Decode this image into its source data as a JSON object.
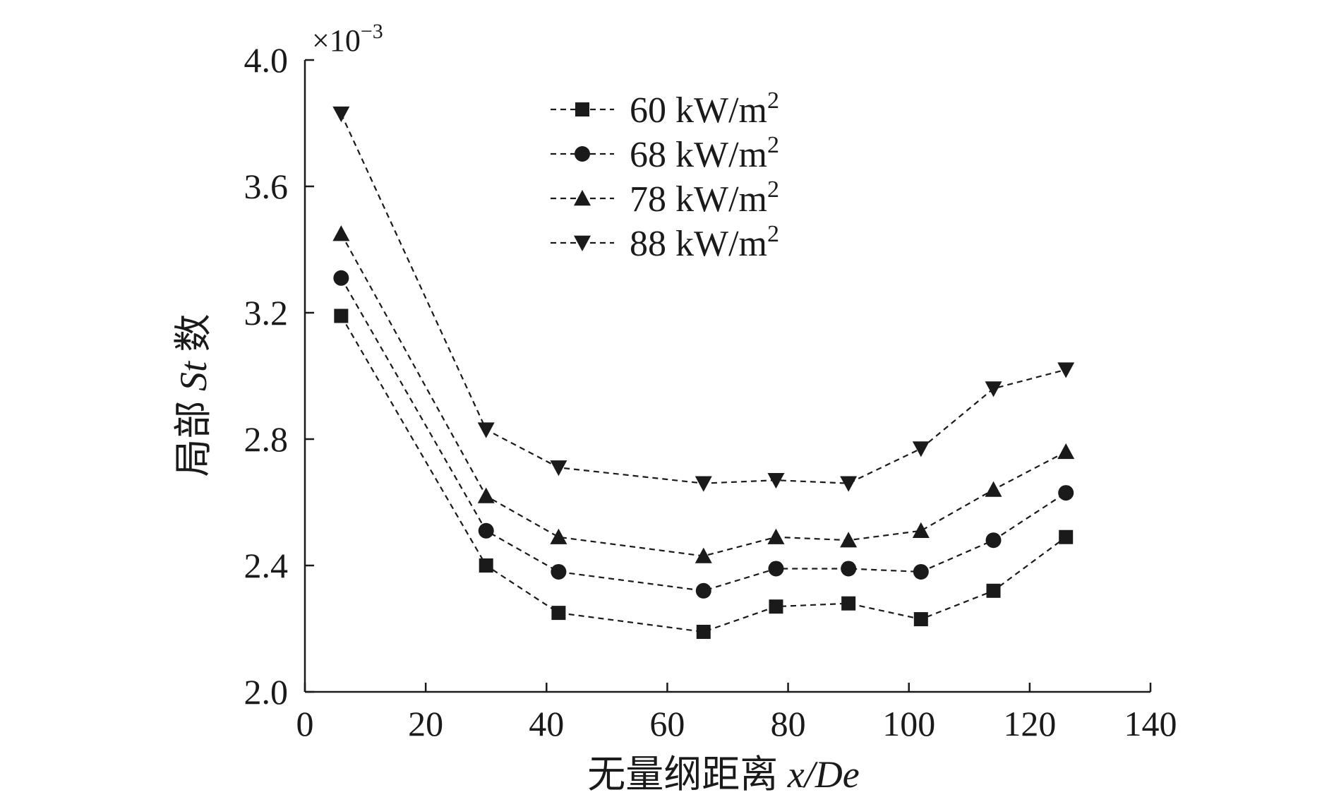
{
  "chart_data": {
    "type": "line",
    "title": "",
    "xlabel_text": "无量纲距离 ",
    "xlabel_var": "x/De",
    "ylabel_text_before": "局部 ",
    "ylabel_var": "St",
    "ylabel_text_after": " 数",
    "y_multiplier_base": "×10",
    "y_multiplier_exp": "−3",
    "xlim": [
      0,
      140
    ],
    "ylim": [
      2.0,
      4.0
    ],
    "x_ticks": [
      0,
      20,
      40,
      60,
      80,
      100,
      120,
      140
    ],
    "x_tick_labels": [
      "0",
      "20",
      "40",
      "60",
      "80",
      "100",
      "120",
      "140"
    ],
    "y_ticks": [
      2.0,
      2.4,
      2.8,
      3.2,
      3.6,
      4.0
    ],
    "y_tick_labels": [
      "2.0",
      "2.4",
      "2.8",
      "3.2",
      "3.6",
      "4.0"
    ],
    "grid": false,
    "legend_position": "top-center",
    "x": [
      6,
      30,
      42,
      66,
      78,
      90,
      102,
      114,
      126
    ],
    "series": [
      {
        "name": "60 kW/m",
        "sup": "2",
        "marker": "square",
        "values": [
          3.19,
          2.4,
          2.25,
          2.19,
          2.27,
          2.28,
          2.23,
          2.32,
          2.49
        ]
      },
      {
        "name": "68 kW/m",
        "sup": "2",
        "marker": "circle",
        "values": [
          3.31,
          2.51,
          2.38,
          2.32,
          2.39,
          2.39,
          2.38,
          2.48,
          2.63
        ]
      },
      {
        "name": "78 kW/m",
        "sup": "2",
        "marker": "triangle-up",
        "values": [
          3.45,
          2.62,
          2.49,
          2.43,
          2.49,
          2.48,
          2.51,
          2.64,
          2.76
        ]
      },
      {
        "name": "88 kW/m",
        "sup": "2",
        "marker": "triangle-down",
        "values": [
          3.83,
          2.83,
          2.71,
          2.66,
          2.67,
          2.66,
          2.77,
          2.96,
          3.02
        ]
      }
    ],
    "color": "#1a1a1a"
  }
}
